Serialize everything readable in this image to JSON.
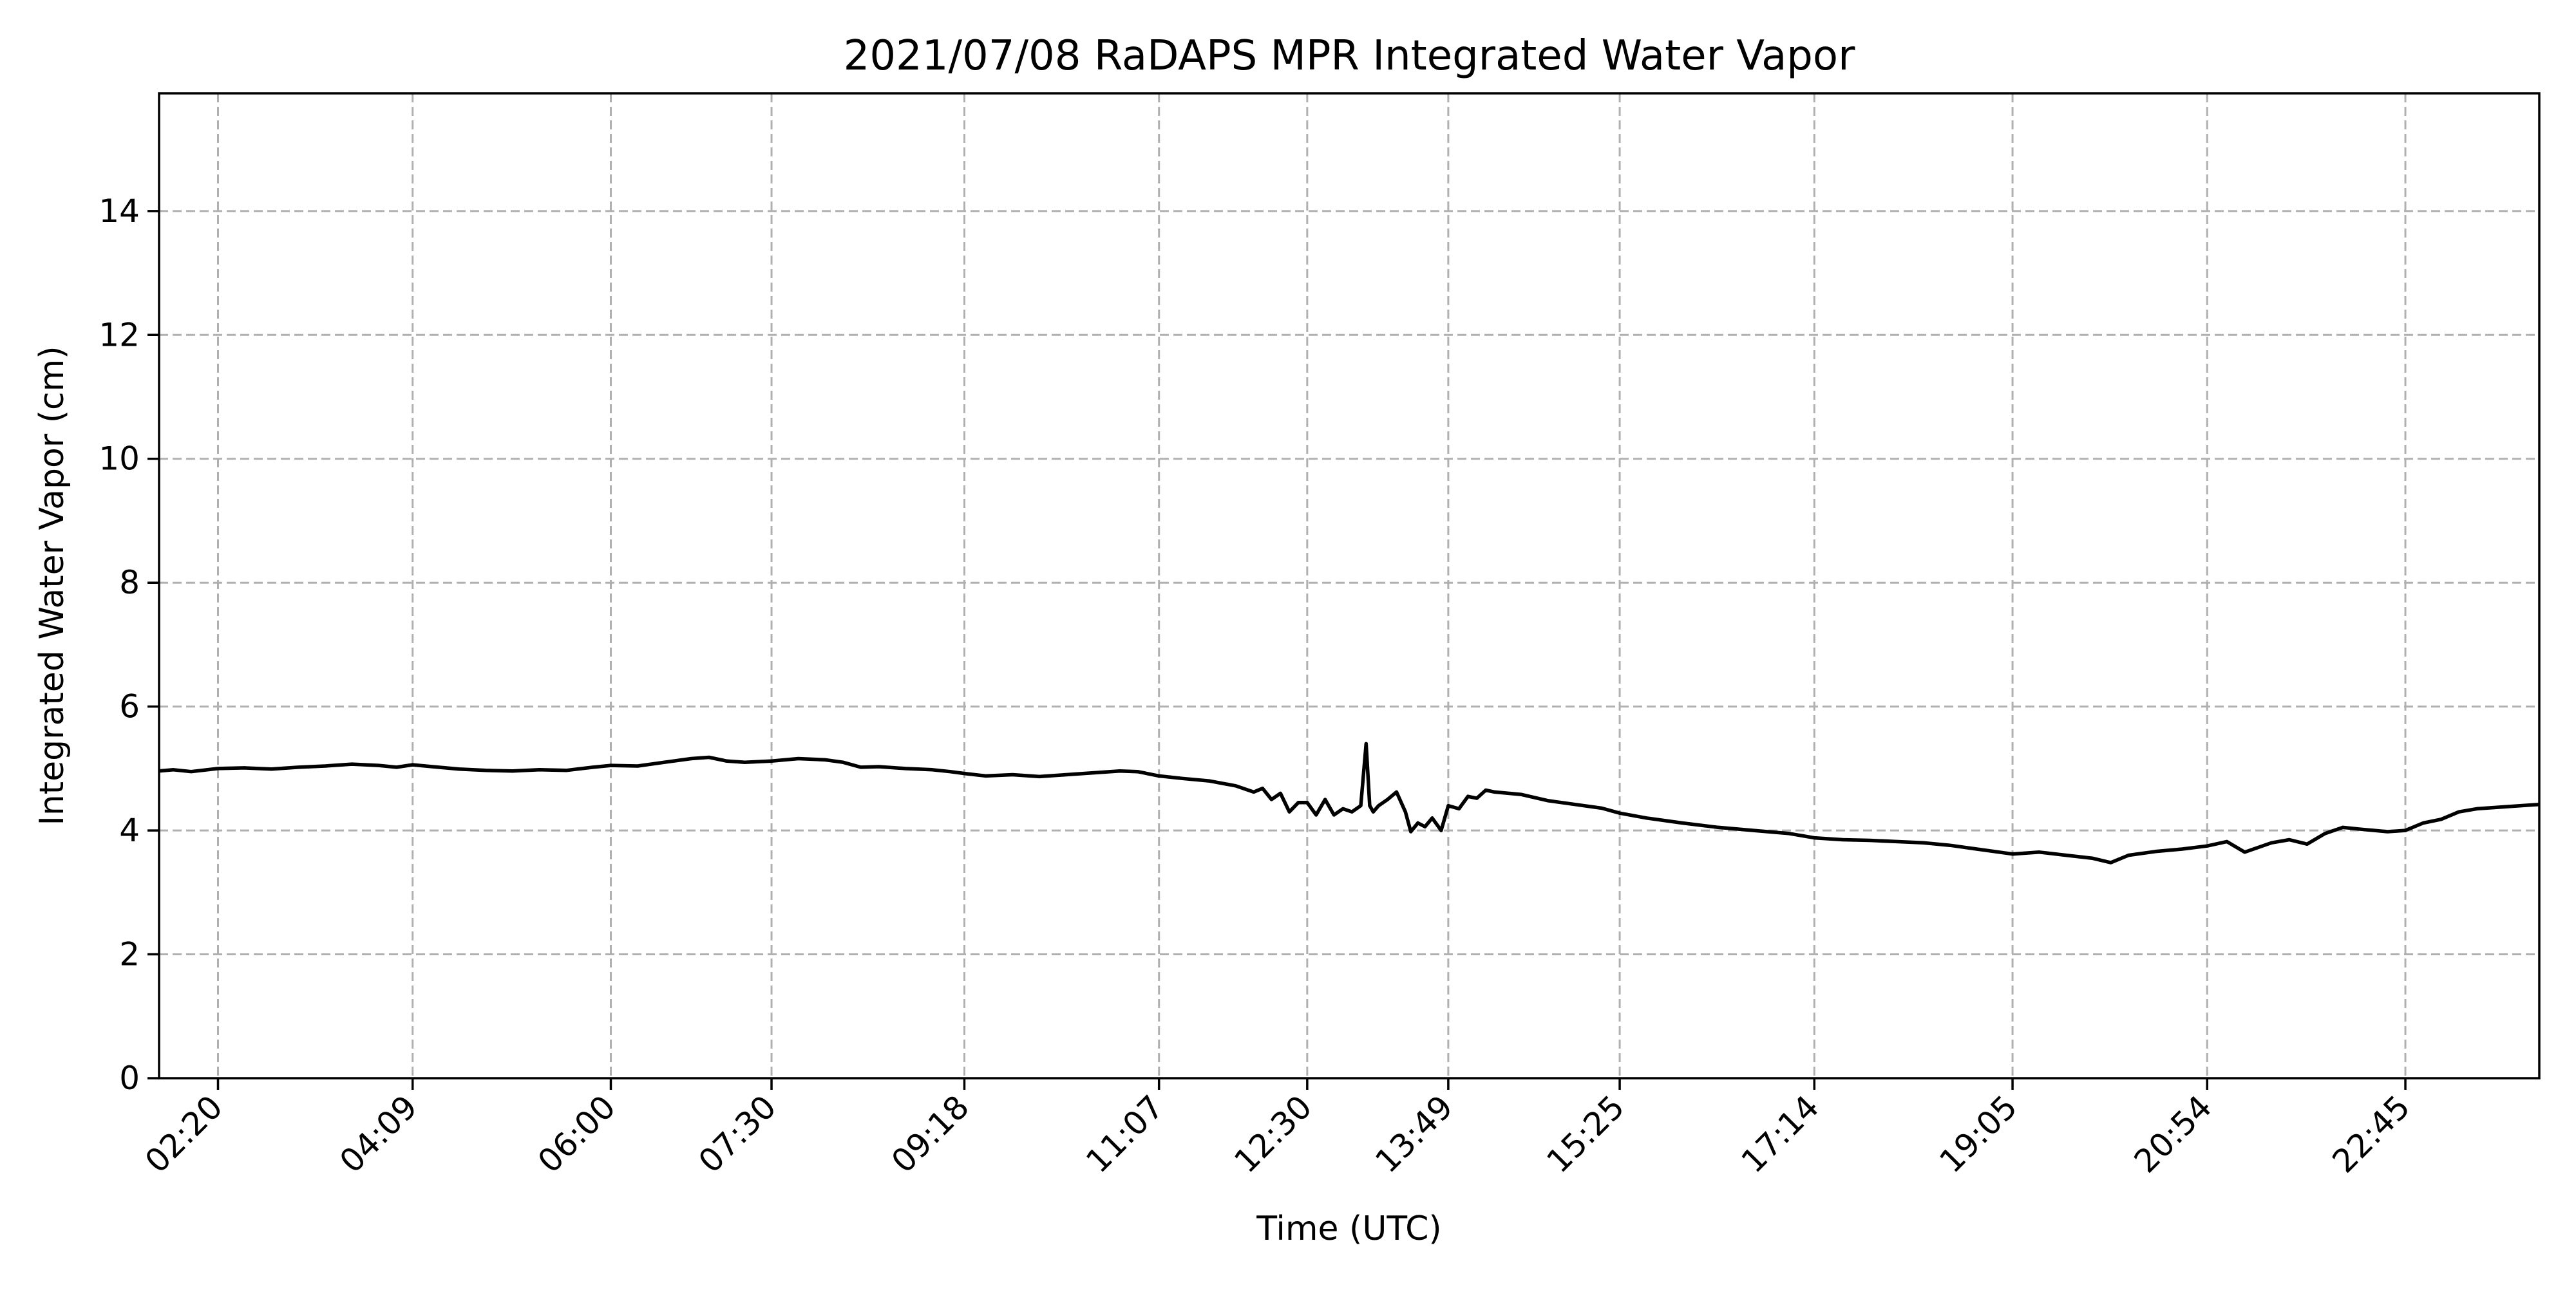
{
  "chart_data": {
    "type": "line",
    "title": "2021/07/08 RaDAPS MPR Integrated Water Vapor",
    "xlabel": "Time (UTC)",
    "ylabel": "Integrated Water Vapor (cm)",
    "ylim": [
      0,
      15.9
    ],
    "xlim": [
      "01:47",
      "24:00"
    ],
    "grid": true,
    "line_color": "#000000",
    "grid_color": "#b0b0b0",
    "y_ticks": [
      0,
      2,
      4,
      6,
      8,
      10,
      12,
      14
    ],
    "y_tick_labels": [
      "0",
      "2",
      "4",
      "6",
      "8",
      "10",
      "12",
      "14"
    ],
    "x_ticks": [
      "02:20",
      "04:09",
      "06:00",
      "07:30",
      "09:18",
      "11:07",
      "12:30",
      "13:49",
      "15:25",
      "17:14",
      "19:05",
      "20:54",
      "22:45"
    ],
    "series": [
      {
        "x": [
          "01:47",
          "01:55",
          "02:05",
          "02:20",
          "02:35",
          "02:50",
          "03:05",
          "03:20",
          "03:35",
          "03:50",
          "04:00",
          "04:09",
          "04:20",
          "04:35",
          "04:50",
          "05:05",
          "05:20",
          "05:35",
          "05:50",
          "06:00",
          "06:15",
          "06:30",
          "06:45",
          "06:55",
          "07:05",
          "07:15",
          "07:30",
          "07:45",
          "08:00",
          "08:10",
          "08:20",
          "08:30",
          "08:45",
          "09:00",
          "09:10",
          "09:18",
          "09:30",
          "09:45",
          "10:00",
          "10:15",
          "10:30",
          "10:45",
          "10:55",
          "11:07",
          "11:20",
          "11:35",
          "11:50",
          "12:00",
          "12:05",
          "12:10",
          "12:15",
          "12:20",
          "12:25",
          "12:30",
          "12:35",
          "12:40",
          "12:45",
          "12:50",
          "12:55",
          "13:00",
          "13:03",
          "13:05",
          "13:07",
          "13:10",
          "13:15",
          "13:20",
          "13:25",
          "13:28",
          "13:32",
          "13:36",
          "13:40",
          "13:45",
          "13:49",
          "13:55",
          "14:00",
          "14:05",
          "14:10",
          "14:15",
          "14:30",
          "14:45",
          "15:00",
          "15:15",
          "15:25",
          "15:40",
          "16:00",
          "16:20",
          "16:40",
          "17:00",
          "17:14",
          "17:30",
          "17:45",
          "18:00",
          "18:15",
          "18:30",
          "18:45",
          "19:05",
          "19:20",
          "19:35",
          "19:50",
          "20:00",
          "20:10",
          "20:25",
          "20:40",
          "20:54",
          "21:05",
          "21:15",
          "21:30",
          "21:40",
          "21:50",
          "22:00",
          "22:10",
          "22:20",
          "22:35",
          "22:45",
          "22:55",
          "23:05",
          "23:15",
          "23:25",
          "23:40",
          "24:00"
        ],
        "y": [
          4.96,
          4.98,
          4.95,
          5.0,
          5.01,
          4.99,
          5.02,
          5.04,
          5.07,
          5.05,
          5.02,
          5.06,
          5.03,
          4.99,
          4.97,
          4.96,
          4.98,
          4.97,
          5.02,
          5.05,
          5.04,
          5.1,
          5.16,
          5.18,
          5.12,
          5.1,
          5.12,
          5.16,
          5.14,
          5.1,
          5.02,
          5.03,
          5.0,
          4.98,
          4.95,
          4.92,
          4.88,
          4.9,
          4.87,
          4.9,
          4.93,
          4.96,
          4.95,
          4.88,
          4.84,
          4.8,
          4.72,
          4.62,
          4.68,
          4.5,
          4.6,
          4.3,
          4.45,
          4.45,
          4.25,
          4.5,
          4.25,
          4.35,
          4.3,
          4.4,
          5.4,
          4.4,
          4.3,
          4.4,
          4.5,
          4.62,
          4.3,
          3.98,
          4.12,
          4.06,
          4.2,
          4.0,
          4.4,
          4.35,
          4.55,
          4.52,
          4.65,
          4.62,
          4.58,
          4.48,
          4.42,
          4.36,
          4.28,
          4.2,
          4.12,
          4.05,
          4.0,
          3.95,
          3.88,
          3.85,
          3.84,
          3.82,
          3.8,
          3.76,
          3.7,
          3.62,
          3.65,
          3.6,
          3.55,
          3.48,
          3.6,
          3.66,
          3.7,
          3.75,
          3.82,
          3.65,
          3.8,
          3.85,
          3.78,
          3.95,
          4.05,
          4.02,
          3.98,
          4.0,
          4.12,
          4.18,
          4.3,
          4.35,
          4.38,
          4.42
        ]
      }
    ]
  }
}
